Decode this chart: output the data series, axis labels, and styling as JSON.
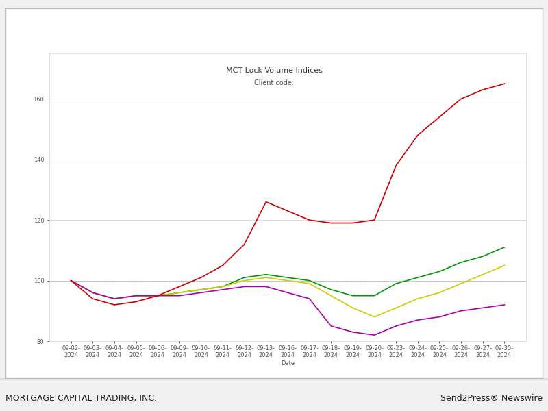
{
  "title": "MCT Lock Volume Indices",
  "subtitle": "Client code:",
  "xlabel": "Date",
  "footer_left": "MORTGAGE CAPITAL TRADING, INC.",
  "footer_right": "Send2Press® Newswire",
  "ylim": [
    80,
    175
  ],
  "yticks": [
    80,
    100,
    120,
    140,
    160
  ],
  "background_color": "#f0f0f0",
  "plot_bg_color": "#ffffff",
  "grid_color": "#cccccc",
  "dates": [
    "09-02-\n2024",
    "09-03-\n2024",
    "09-04-\n2024",
    "09-05-\n2024",
    "09-06-\n2024",
    "09-09-\n2024",
    "09-10-\n2024",
    "09-11-\n2024",
    "09-12-\n2024",
    "09-13-\n2024",
    "09-16-\n2024",
    "09-17-\n2024",
    "09-18-\n2024",
    "09-19-\n2024",
    "09-20-\n2024",
    "09-23-\n2024",
    "09-24-\n2024",
    "09-25-\n2024",
    "09-26-\n2024",
    "09-27-\n2024",
    "09-30-\n2024"
  ],
  "total": [
    100,
    96,
    94,
    95,
    95,
    96,
    97,
    98,
    100,
    101,
    100,
    99,
    95,
    91,
    88,
    91,
    94,
    96,
    99,
    102,
    105
  ],
  "purchase": [
    100,
    96,
    94,
    95,
    95,
    96,
    97,
    98,
    101,
    102,
    101,
    100,
    97,
    95,
    95,
    99,
    101,
    103,
    106,
    108,
    111
  ],
  "rate_term": [
    100,
    94,
    92,
    93,
    95,
    98,
    101,
    105,
    112,
    126,
    123,
    120,
    119,
    119,
    120,
    138,
    148,
    154,
    160,
    163,
    165
  ],
  "cash_out": [
    100,
    96,
    94,
    95,
    95,
    95,
    96,
    97,
    98,
    98,
    96,
    94,
    85,
    83,
    82,
    85,
    87,
    88,
    90,
    91,
    92
  ],
  "total_color": "#cccc00",
  "purchase_color": "#009900",
  "rate_term_color": "#cc0000",
  "cash_out_color": "#aa00aa",
  "line_width": 1.2,
  "ref_line_color": "#aaaaaa",
  "ref_line_style": ":",
  "title_fontsize": 8,
  "tick_fontsize": 6,
  "legend_fontsize": 7,
  "footer_fontsize": 9,
  "outer_border_color": "#c0c0c0",
  "inner_border_color": "#d0d0d0"
}
